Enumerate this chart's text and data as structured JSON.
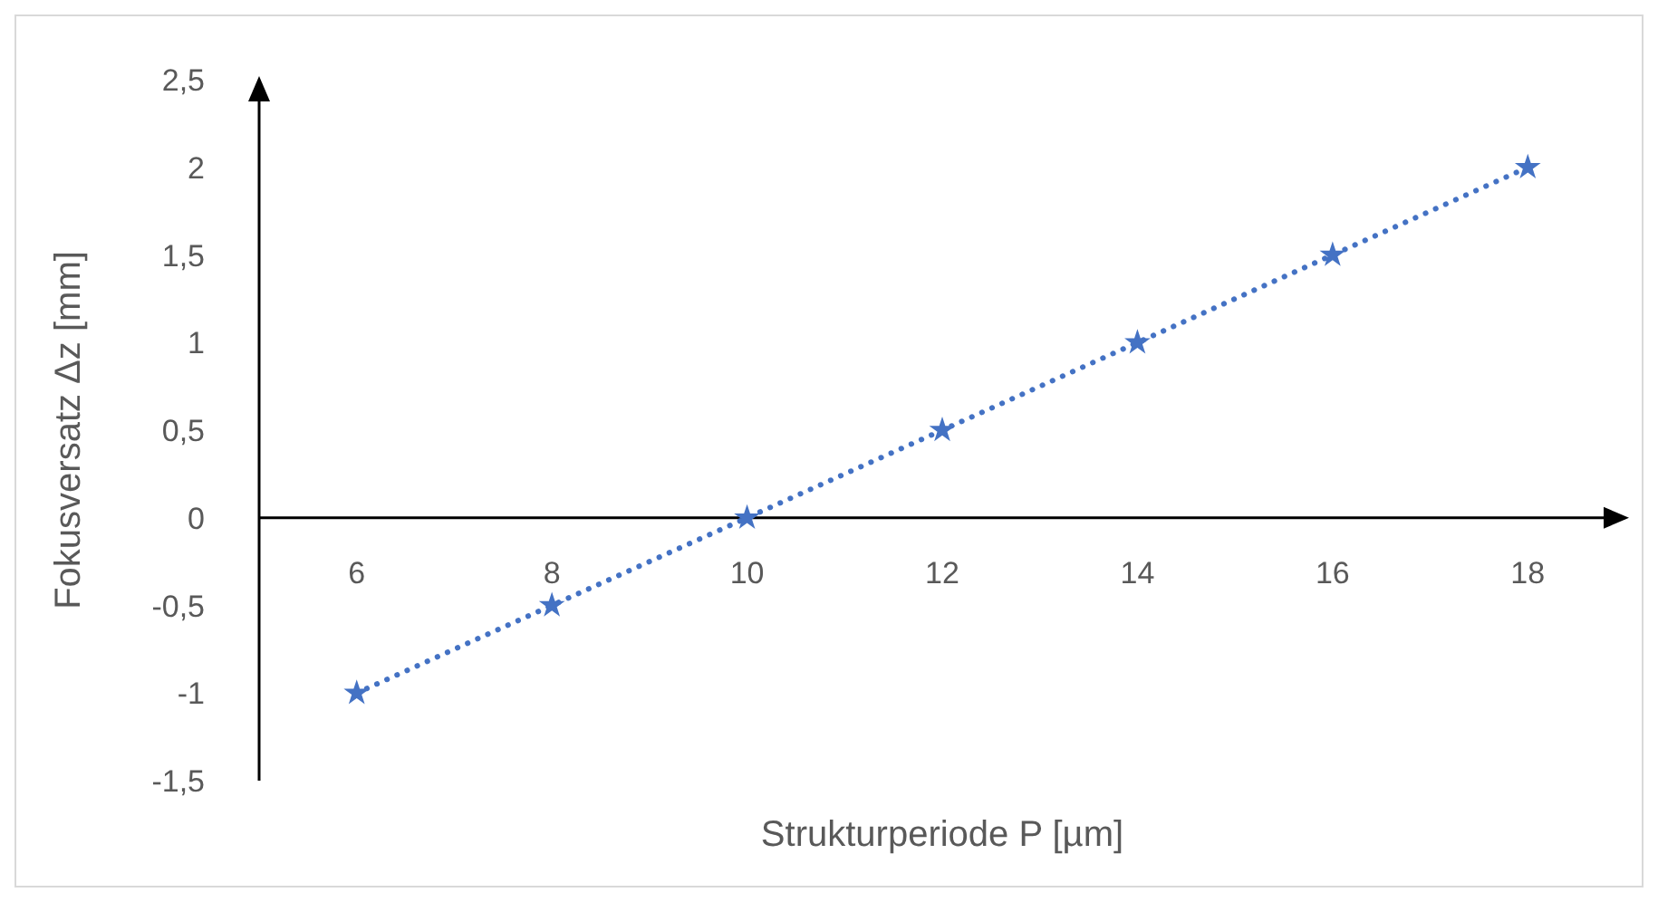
{
  "chart_data": {
    "type": "line",
    "xlabel": "Strukturperiode P [µm]",
    "ylabel": "Fokusversatz Δz [mm]",
    "x": [
      6,
      8,
      10,
      12,
      14,
      16,
      18
    ],
    "series": [
      {
        "color": "#4472c4",
        "values": [
          -1,
          -0.5,
          0,
          0.5,
          1,
          1.5,
          2
        ]
      }
    ],
    "xlim": [
      5,
      19
    ],
    "xticks": [
      6,
      8,
      10,
      12,
      14,
      16,
      18
    ],
    "ylim": [
      -1.5,
      2.5
    ],
    "yticks": [
      {
        "value": -1.5,
        "label": "-1,5"
      },
      -1,
      {
        "value": -0.5,
        "label": "-0,5"
      },
      0,
      {
        "value": 0.5,
        "label": "0,5"
      },
      1,
      {
        "value": 1.5,
        "label": "1,5"
      },
      2,
      {
        "value": 2.5,
        "label": "2,5"
      }
    ],
    "grid": false,
    "legend": false,
    "marker": "star",
    "line_style": "dotted"
  }
}
